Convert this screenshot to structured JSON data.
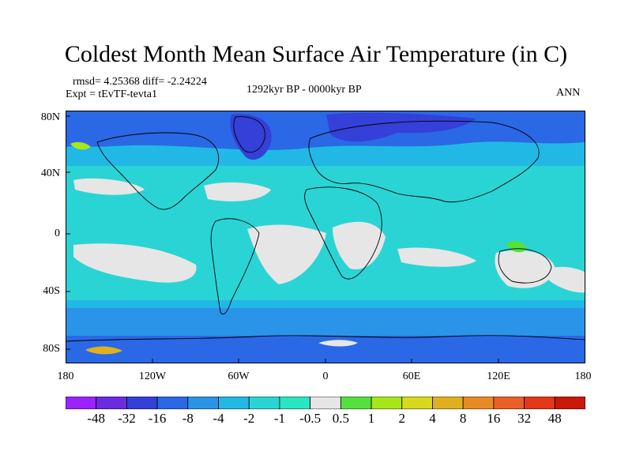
{
  "title": "Coldest Month Mean Surface Air Temperature (in C)",
  "stats": {
    "rmsd_diff": "rmsd= 4.25368 diff= -2.24224",
    "experiment": "Expt = tEvTF-tevta1",
    "period": "1292kyr BP - 0000kyr BP",
    "season": "ANN"
  },
  "y_ticks": [
    "80N",
    "40N",
    "0",
    "40S",
    "80S"
  ],
  "x_ticks": [
    "180",
    "120W",
    "60W",
    "0",
    "60E",
    "120E",
    "180"
  ],
  "colorbar": {
    "labels": [
      "-48",
      "-32",
      "-16",
      "-8",
      "-4",
      "-2",
      "-1",
      "-0.5",
      "0.5",
      "1",
      "2",
      "4",
      "8",
      "16",
      "32",
      "48"
    ],
    "colors": [
      "#9a22ff",
      "#6b2ce0",
      "#3440d8",
      "#2a68e6",
      "#2a94e8",
      "#22b8e6",
      "#2ad4d4",
      "#2ae6c0",
      "#e6e6e6",
      "#55e040",
      "#a8e61c",
      "#d8d820",
      "#e0b020",
      "#e88a26",
      "#e86026",
      "#e23818",
      "#c81808"
    ]
  },
  "chart_data": {
    "type": "heatmap",
    "title": "Coldest Month Mean Surface Air Temperature (in C)",
    "x_ticks": [
      "180",
      "120W",
      "60W",
      "0",
      "60E",
      "120E",
      "180"
    ],
    "y_ticks": [
      "80N",
      "40N",
      "0",
      "40S",
      "80S"
    ],
    "xlim": [
      -180,
      180
    ],
    "ylim": [
      -90,
      90
    ],
    "levels": [
      -48,
      -32,
      -16,
      -8,
      -4,
      -2,
      -1,
      -0.5,
      0.5,
      1,
      2,
      4,
      8,
      16,
      32,
      48
    ]
  }
}
